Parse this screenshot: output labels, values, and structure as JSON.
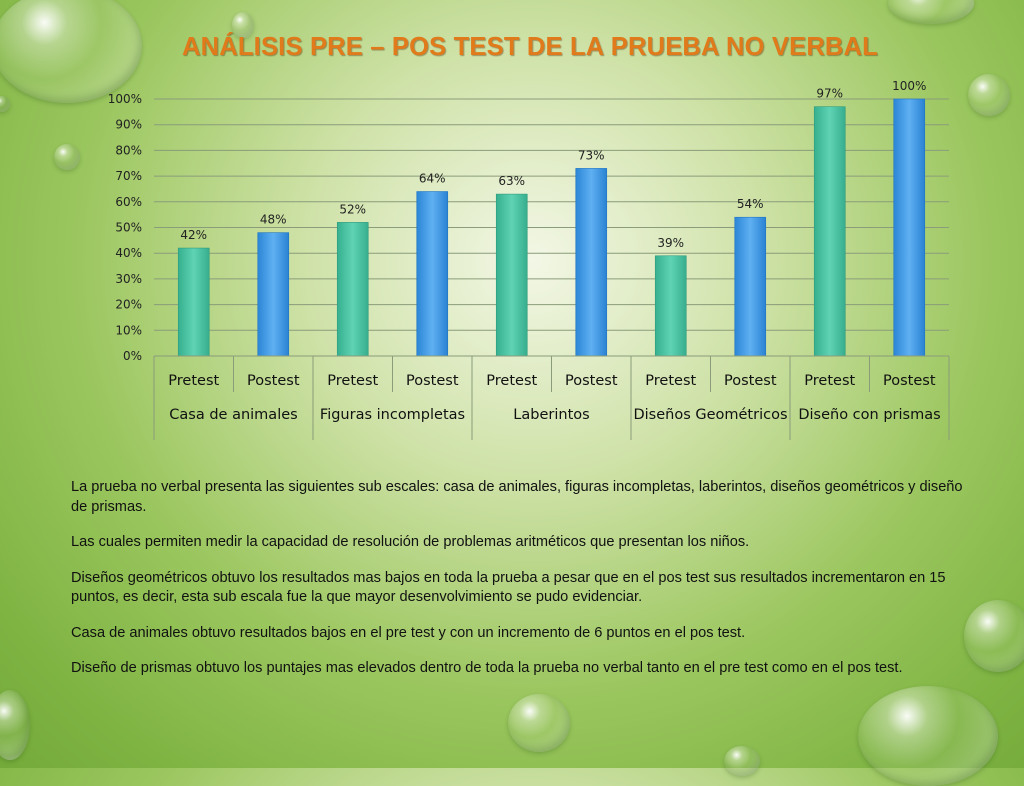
{
  "slide": {
    "title": "ANÁLISIS  PRE – POS TEST DE LA PRUEBA NO VERBAL",
    "paragraphs": [
      "La prueba  no verbal presenta las siguientes sub escales: casa de animales, figuras incompletas, laberintos, diseños geométricos y diseño de prismas.",
      "Las cuales permiten medir la capacidad de resolución de problemas aritméticos que presentan los niños.",
      "Diseños geométricos  obtuvo los resultados mas bajos en toda la prueba a pesar que en el pos test sus resultados incrementaron en 15 puntos, es decir, esta sub escala fue la que mayor desenvolvimiento se pudo evidenciar.",
      "Casa de animales obtuvo resultados bajos en el pre test y  con un incremento de 6 puntos en el pos test.",
      "Diseño de prismas  obtuvo los puntajes mas elevados dentro de toda la prueba no verbal tanto en el pre test como en el pos test."
    ]
  },
  "chart_data": {
    "type": "bar",
    "groups": [
      {
        "name": "Casa de animales",
        "bars": [
          {
            "label": "Pretest",
            "value": 42
          },
          {
            "label": "Postest",
            "value": 48
          }
        ]
      },
      {
        "name": "Figuras incompletas",
        "bars": [
          {
            "label": "Pretest",
            "value": 52
          },
          {
            "label": "Postest",
            "value": 64
          }
        ]
      },
      {
        "name": "Laberintos",
        "bars": [
          {
            "label": "Pretest",
            "value": 63
          },
          {
            "label": "Postest",
            "value": 73
          }
        ]
      },
      {
        "name": "Diseños Geométricos",
        "bars": [
          {
            "label": "Pretest",
            "value": 39
          },
          {
            "label": "Postest",
            "value": 54
          }
        ]
      },
      {
        "name": "Diseño con prismas",
        "bars": [
          {
            "label": "Pretest",
            "value": 97
          },
          {
            "label": "Postest",
            "value": 100
          }
        ]
      }
    ],
    "ylim": [
      0,
      100
    ],
    "yticks": [
      0,
      10,
      20,
      30,
      40,
      50,
      60,
      70,
      80,
      90,
      100
    ],
    "value_suffix": "%",
    "grid": true,
    "colors": {
      "Pretest": "#4cc4a4",
      "Postest": "#3a9be6"
    }
  }
}
